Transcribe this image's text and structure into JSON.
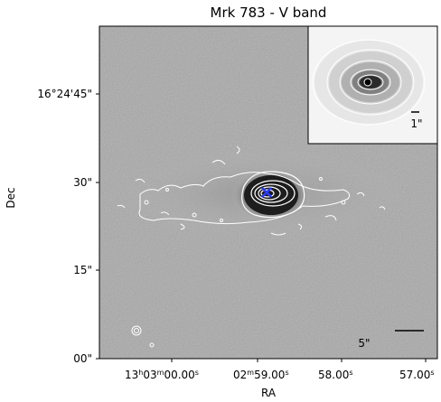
{
  "title": "Mrk 783 - V band",
  "axes": {
    "ylabel": "Dec",
    "xlabel": "RA",
    "y_ticks": [
      "16°24'45\"",
      "30\"",
      "15\"",
      "00\""
    ],
    "x_ticks": [
      {
        "h": "13",
        "m": "03",
        "s": "00.00",
        "text_h": "h",
        "text_m": "m",
        "text_s": "s"
      },
      {
        "h": "",
        "m": "02",
        "s": "59.00",
        "text_h": "",
        "text_m": "m",
        "text_s": "s"
      },
      {
        "h": "",
        "m": "",
        "s": "58.00",
        "text_h": "",
        "text_m": "",
        "text_s": "s"
      },
      {
        "h": "",
        "m": "",
        "s": "57.00",
        "text_h": "",
        "text_m": "",
        "text_s": "s"
      }
    ]
  },
  "scale_bar_label": "5\"",
  "inset": {
    "scale_bar_label": "1\""
  },
  "colors": {
    "background": "#b8b8b8",
    "marker": "#2a3cff",
    "contour": "#ffffff",
    "core": "#111111"
  }
}
